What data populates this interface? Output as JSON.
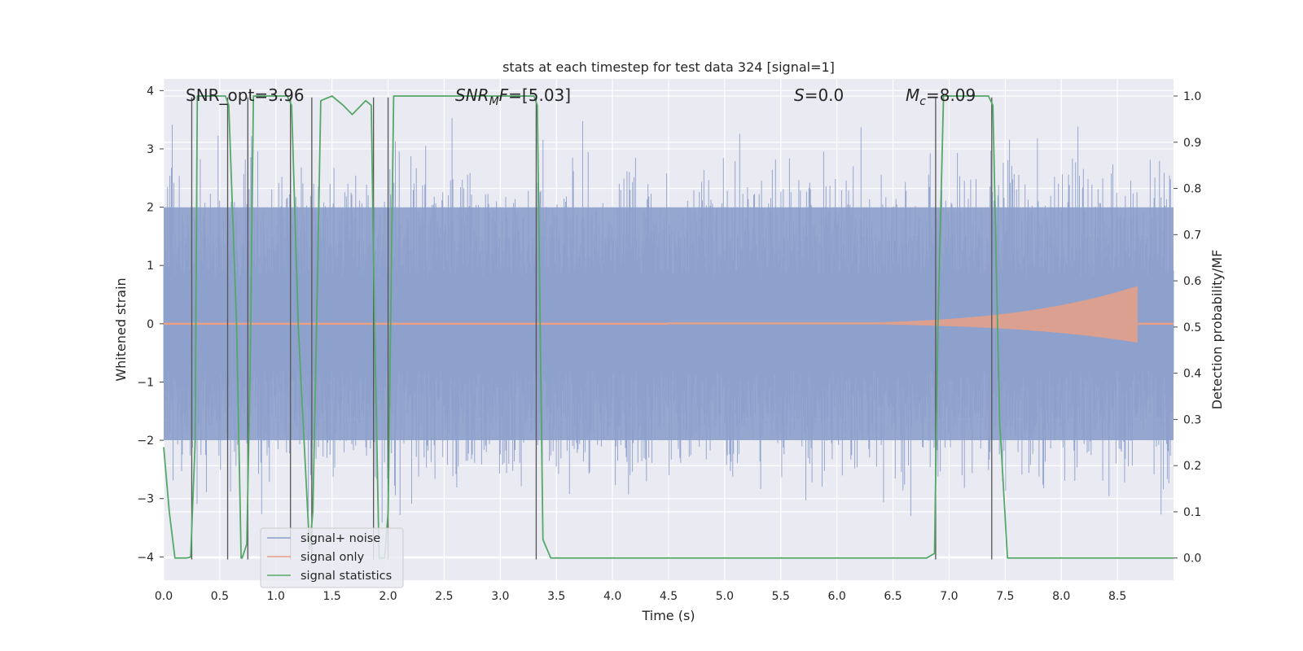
{
  "chart_data": {
    "type": "line",
    "title": "stats at each timestep for test data 324 [signal=1]",
    "xlabel": "Time (s)",
    "ylabel": "Whitened strain",
    "y2label": "Detection probability/MF",
    "xlim": [
      0.0,
      9.0
    ],
    "ylim": [
      -4.4,
      4.2
    ],
    "y2lim": [
      -0.048,
      1.037
    ],
    "xticks": [
      "0.0",
      "0.5",
      "1.0",
      "1.5",
      "2.0",
      "2.5",
      "3.0",
      "3.5",
      "4.0",
      "4.5",
      "5.0",
      "5.5",
      "6.0",
      "6.5",
      "7.0",
      "7.5",
      "8.0",
      "8.5"
    ],
    "yticks": [
      "4",
      "3",
      "2",
      "1",
      "0",
      "−1",
      "−2",
      "−3",
      "−4"
    ],
    "y2ticks": [
      "1.0",
      "0.9",
      "0.8",
      "0.7",
      "0.6",
      "0.5",
      "0.4",
      "0.3",
      "0.2",
      "0.1",
      "0.0"
    ],
    "annotations": {
      "snr_opt": "SNR_opt=3.96",
      "snr_mf_name": "SNR",
      "snr_mf_sub": "M",
      "snr_mf_tail": "F",
      "snr_mf_value": "=[5.03]",
      "s_name": "S",
      "s_value": "=0.0",
      "mc_name": "M",
      "mc_sub": "c",
      "mc_value": "=8.09"
    },
    "legend": {
      "position": "lower-left",
      "entries": [
        {
          "label": "signal+ noise",
          "color": "#8da0cb"
        },
        {
          "label": "signal only",
          "color": "#e9a084"
        },
        {
          "label": "signal statistics",
          "color": "#55a868"
        }
      ]
    },
    "series": [
      {
        "name": "signal statistics",
        "axis": "right",
        "color": "#55a868",
        "x": [
          0.0,
          0.05,
          0.1,
          0.2,
          0.24,
          0.28,
          0.3,
          0.35,
          0.55,
          0.58,
          0.65,
          0.69,
          0.7,
          0.74,
          0.77,
          0.8,
          1.1,
          1.14,
          1.2,
          1.3,
          1.33,
          1.37,
          1.4,
          1.5,
          1.6,
          1.68,
          1.8,
          1.85,
          1.88,
          1.92,
          1.97,
          2.0,
          2.05,
          3.3,
          3.33,
          3.38,
          3.45,
          3.6,
          4.5,
          5.5,
          6.8,
          6.87,
          6.9,
          6.95,
          7.35,
          7.39,
          7.45,
          7.52,
          7.6,
          8.0,
          8.5,
          8.7,
          9.0
        ],
        "y": [
          0.24,
          0.1,
          0.0,
          0.0,
          0.002,
          0.25,
          1.0,
          1.0,
          1.0,
          0.98,
          0.5,
          0.0,
          0.0,
          0.03,
          0.4,
          1.0,
          1.0,
          0.98,
          0.5,
          0.02,
          0.1,
          0.6,
          0.99,
          1.0,
          0.98,
          0.96,
          0.99,
          0.98,
          0.5,
          0.0,
          0.0,
          0.1,
          1.0,
          1.0,
          0.98,
          0.04,
          0.0,
          0.0,
          0.0,
          0.0,
          0.0,
          0.01,
          0.5,
          1.0,
          1.0,
          0.98,
          0.3,
          0.0,
          0.0,
          0.0,
          0.0,
          0.0,
          0.0
        ]
      }
    ],
    "noise": {
      "name": "signal+ noise",
      "axis": "left",
      "color": "#8da0cb",
      "band": [
        -2.0,
        2.0
      ],
      "peak_range": [
        -3.6,
        3.9
      ]
    },
    "signal_only": {
      "name": "signal only",
      "axis": "left",
      "color": "#e9a084",
      "start_time": 4.5,
      "end_time": 8.68,
      "max_amplitude": 0.65
    },
    "vlines": [
      0.25,
      0.57,
      0.75,
      1.13,
      1.32,
      1.87,
      2.0,
      3.32,
      6.88,
      7.38
    ]
  }
}
